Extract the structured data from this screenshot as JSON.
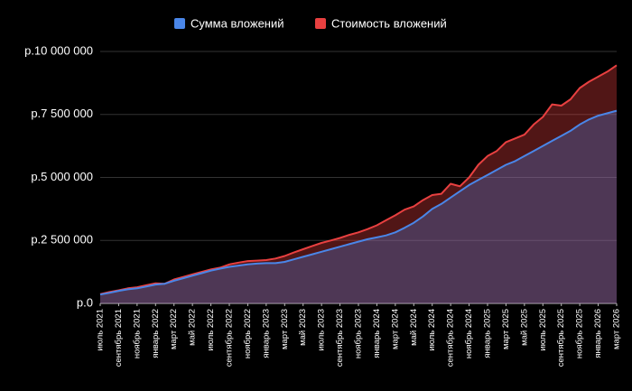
{
  "chart_data": {
    "type": "area",
    "categories": [
      "июль 2021",
      null,
      "сентябрь 2021",
      null,
      "ноябрь 2021",
      null,
      "январь 2022",
      null,
      "март 2022",
      null,
      "май 2022",
      null,
      "июль 2022",
      null,
      "сентябрь 2022",
      null,
      "ноябрь 2022",
      null,
      "январь 2023",
      null,
      "март 2023",
      null,
      "май 2023",
      null,
      "июль 2023",
      null,
      "сентябрь 2023",
      null,
      "ноябрь 2023",
      null,
      "январь 2024",
      null,
      "март 2024",
      null,
      "май 2024",
      null,
      "июль 2024",
      null,
      "сентябрь 2024",
      null,
      "ноябрь 2024",
      null,
      "январь 2025",
      null,
      "март 2025",
      null,
      "май 2025",
      null,
      "июль 2025",
      null,
      "сентябрь 2025",
      null,
      "ноябрь 2025",
      null,
      "январь 2026",
      null,
      "март 2026"
    ],
    "series": [
      {
        "name": "Сумма вложений",
        "color": "#4a86e8",
        "values": [
          350000,
          420000,
          500000,
          560000,
          600000,
          670000,
          750000,
          780000,
          900000,
          1000000,
          1100000,
          1200000,
          1300000,
          1380000,
          1450000,
          1500000,
          1550000,
          1580000,
          1600000,
          1600000,
          1650000,
          1750000,
          1850000,
          1950000,
          2050000,
          2150000,
          2250000,
          2350000,
          2450000,
          2550000,
          2620000,
          2700000,
          2820000,
          3000000,
          3200000,
          3450000,
          3750000,
          3950000,
          4200000,
          4450000,
          4700000,
          4900000,
          5100000,
          5300000,
          5500000,
          5650000,
          5850000,
          6050000,
          6250000,
          6450000,
          6650000,
          6850000,
          7100000,
          7300000,
          7450000,
          7550000,
          7650000
        ]
      },
      {
        "name": "Стоимость вложений",
        "color": "#e84040",
        "values": [
          370000,
          450000,
          520000,
          600000,
          640000,
          720000,
          800000,
          780000,
          950000,
          1050000,
          1150000,
          1250000,
          1350000,
          1420000,
          1550000,
          1620000,
          1680000,
          1700000,
          1720000,
          1780000,
          1880000,
          2020000,
          2150000,
          2280000,
          2400000,
          2500000,
          2600000,
          2720000,
          2820000,
          2950000,
          3100000,
          3300000,
          3500000,
          3720000,
          3850000,
          4100000,
          4300000,
          4350000,
          4750000,
          4650000,
          5000000,
          5500000,
          5850000,
          6050000,
          6400000,
          6550000,
          6700000,
          7100000,
          7400000,
          7900000,
          7850000,
          8100000,
          8550000,
          8800000,
          9000000,
          9200000,
          9450000
        ]
      }
    ],
    "ylim": [
      0,
      10000000
    ],
    "yticks": [
      {
        "value": 0,
        "label": "р.0"
      },
      {
        "value": 2500000,
        "label": "р.2 500 000"
      },
      {
        "value": 5000000,
        "label": "р.5 000 000"
      },
      {
        "value": 7500000,
        "label": "р.7 500 000"
      },
      {
        "value": 10000000,
        "label": "р.10 000 000"
      }
    ],
    "grid": true,
    "legend": "top"
  }
}
